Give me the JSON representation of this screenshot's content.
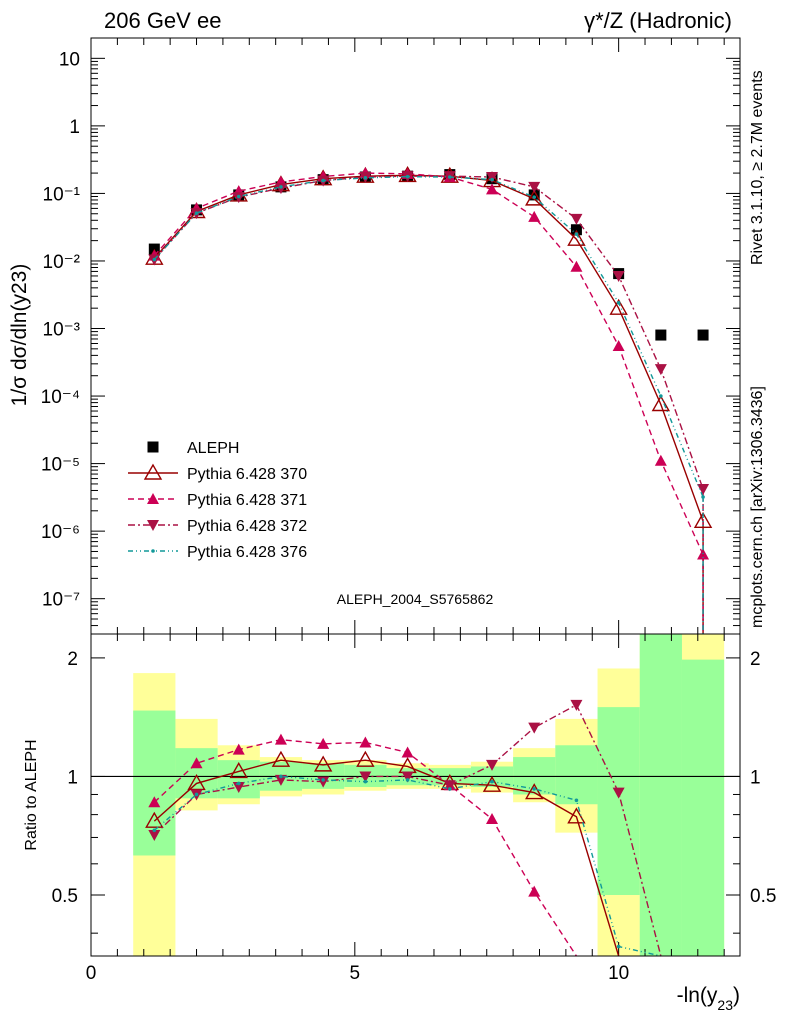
{
  "header": {
    "left": "206 GeV ee",
    "right": "γ*/Z (Hadronic)"
  },
  "side_text": {
    "rivet": "Rivet 3.1.10, ≥ 2.7M events",
    "mcplots": "mcplots.cern.ch [arXiv:1306.3436]"
  },
  "analysis_label": "ALEPH_2004_S5765862",
  "colors": {
    "data": "#000000",
    "p370": "#990000",
    "p371": "#cc0055",
    "p372": "#aa1144",
    "p376": "#119999",
    "band_inner": "#99ff99",
    "band_outer": "#ffff99"
  },
  "chart_data": [
    {
      "type": "scatter",
      "panel": "main",
      "ylabel": "1/σ  dσ/dln(y23)",
      "yscale": "log",
      "ylim": [
        3e-08,
        20
      ],
      "xlim": [
        0,
        12.3
      ],
      "ytick_labels": [
        "10",
        "1",
        "10⁻¹",
        "10⁻²",
        "10⁻³",
        "10⁻⁴",
        "10⁻⁵",
        "10⁻⁶",
        "10⁻⁷"
      ],
      "x": [
        1.2,
        2.0,
        2.8,
        3.6,
        4.4,
        5.2,
        6.0,
        6.8,
        7.6,
        8.4,
        9.2,
        10.0,
        10.8,
        11.6
      ],
      "series": [
        {
          "name": "ALEPH",
          "marker": "square",
          "values": [
            0.015,
            0.057,
            0.095,
            0.125,
            0.16,
            0.175,
            0.18,
            0.19,
            0.165,
            0.095,
            0.029,
            0.0065,
            0.0008,
            0.0008
          ]
        },
        {
          "name": "Pythia 6.428 370",
          "marker": "open-triangle",
          "style": "solid",
          "values": [
            0.011,
            0.054,
            0.095,
            0.135,
            0.165,
            0.18,
            0.185,
            0.18,
            0.155,
            0.083,
            0.021,
            0.002,
            7.5e-05,
            1.4e-06
          ]
        },
        {
          "name": "Pythia 6.428 371",
          "marker": "triangle-up",
          "style": "dashed",
          "values": [
            0.012,
            0.06,
            0.108,
            0.148,
            0.178,
            0.2,
            0.195,
            0.175,
            0.115,
            0.045,
            0.0082,
            0.00055,
            1.1e-05,
            4.5e-07
          ]
        },
        {
          "name": "Pythia 6.428 372",
          "marker": "triangle-down",
          "style": "dashdot",
          "values": [
            0.0105,
            0.051,
            0.088,
            0.12,
            0.155,
            0.175,
            0.18,
            0.18,
            0.175,
            0.125,
            0.042,
            0.006,
            0.00025,
            4.2e-06
          ]
        },
        {
          "name": "Pythia 6.428 376",
          "marker": "dot",
          "style": "dashdotdot",
          "values": [
            0.0105,
            0.051,
            0.09,
            0.125,
            0.155,
            0.17,
            0.177,
            0.175,
            0.16,
            0.088,
            0.025,
            0.0024,
            0.0001,
            3.2e-06
          ]
        }
      ]
    },
    {
      "type": "scatter",
      "panel": "ratio",
      "ylabel": "Ratio to ALEPH",
      "ylim": [
        0.35,
        2.3
      ],
      "xlim": [
        0,
        12.3
      ],
      "xlabel": "-ln(y23)",
      "xtick_labels": [
        "0",
        "5",
        "10"
      ],
      "ytick_labels": [
        "0.5",
        "1",
        "2"
      ],
      "reference": 1,
      "x": [
        1.2,
        2.0,
        2.8,
        3.6,
        4.4,
        5.2,
        6.0,
        6.8,
        7.6,
        8.4,
        9.2,
        10.0,
        10.8,
        11.6
      ],
      "bin_edges": [
        0.8,
        1.6,
        2.4,
        3.2,
        4.0,
        4.8,
        5.6,
        6.4,
        7.2,
        8.0,
        8.8,
        9.6,
        10.4,
        11.2,
        12.0
      ],
      "band_inner": [
        [
          0.63,
          1.47
        ],
        [
          0.88,
          1.18
        ],
        [
          0.88,
          1.1
        ],
        [
          0.92,
          1.09
        ],
        [
          0.93,
          1.08
        ],
        [
          0.94,
          1.07
        ],
        [
          0.95,
          1.05
        ],
        [
          0.95,
          1.05
        ],
        [
          0.94,
          1.06
        ],
        [
          0.9,
          1.12
        ],
        [
          0.85,
          1.2
        ],
        [
          0.5,
          1.5
        ],
        [
          0.3,
          2.3
        ],
        [
          0.3,
          1.98
        ]
      ],
      "band_outer": [
        [
          0.3,
          1.83
        ],
        [
          0.82,
          1.4
        ],
        [
          0.85,
          1.2
        ],
        [
          0.89,
          1.12
        ],
        [
          0.9,
          1.1
        ],
        [
          0.92,
          1.1
        ],
        [
          0.93,
          1.08
        ],
        [
          0.93,
          1.07
        ],
        [
          0.91,
          1.09
        ],
        [
          0.86,
          1.18
        ],
        [
          0.72,
          1.4
        ],
        [
          0.3,
          1.88
        ],
        [
          0.3,
          2.3
        ],
        [
          0.3,
          2.3
        ]
      ],
      "series": [
        {
          "name": "Pythia 6.428 370",
          "values": [
            0.77,
            0.96,
            1.03,
            1.1,
            1.07,
            1.1,
            1.06,
            0.96,
            0.95,
            0.91,
            0.79,
            0.3
          ]
        },
        {
          "name": "Pythia 6.428 371",
          "values": [
            0.86,
            1.08,
            1.17,
            1.24,
            1.21,
            1.22,
            1.15,
            0.95,
            0.78,
            0.51,
            0.3
          ]
        },
        {
          "name": "Pythia 6.428 372",
          "values": [
            0.71,
            0.9,
            0.94,
            0.98,
            0.97,
            1.0,
            1.0,
            0.95,
            1.07,
            1.33,
            1.52,
            0.91,
            0.3
          ]
        },
        {
          "name": "Pythia 6.428 376",
          "values": [
            0.73,
            0.9,
            0.96,
            1.0,
            0.98,
            0.97,
            0.98,
            0.93,
            0.97,
            0.93,
            0.87,
            0.37,
            0.3
          ]
        }
      ]
    }
  ]
}
